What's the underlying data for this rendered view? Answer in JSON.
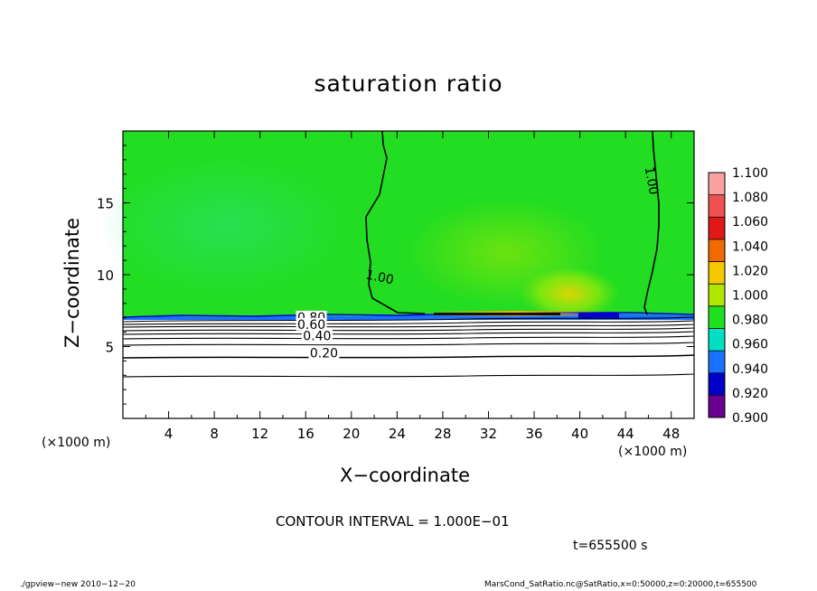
{
  "chart_data": {
    "type": "heatmap",
    "title": "saturation ratio",
    "xlabel": "X−coordinate",
    "ylabel": "Z−coordinate",
    "x_unit": "(×1000 m)",
    "x_range": [
      0,
      50
    ],
    "y_range": [
      0,
      20
    ],
    "x_ticks": [
      4,
      8,
      12,
      16,
      20,
      24,
      28,
      32,
      36,
      40,
      44,
      48
    ],
    "y_ticks": [
      5,
      10,
      15
    ],
    "x_tick_labels": [
      "4",
      "8",
      "12",
      "16",
      "20",
      "24",
      "28",
      "32",
      "36",
      "40",
      "44",
      "48"
    ],
    "y_tick_labels": [
      "5",
      "10",
      "15"
    ],
    "colorbar": {
      "min": 0.9,
      "max": 1.1,
      "labels": [
        "1.100",
        "1.080",
        "1.060",
        "1.040",
        "1.020",
        "1.000",
        "0.980",
        "0.960",
        "0.940",
        "0.920",
        "0.900"
      ],
      "colors": [
        "#f9a0a0",
        "#ef5050",
        "#e01818",
        "#f06a00",
        "#f5c800",
        "#b0e600",
        "#1ee01e",
        "#00e0c0",
        "#1a70ff",
        "#0000c8",
        "#6a0090"
      ]
    },
    "contour_labels": [
      {
        "text": "1.00",
        "x": 22.5,
        "z": 9.6
      },
      {
        "text": "1.00",
        "x": 46.3,
        "z": 16.3
      },
      {
        "text": "0.80",
        "x": 16.5,
        "z": 6.8
      },
      {
        "text": "0.60",
        "x": 16.5,
        "z": 6.3
      },
      {
        "text": "0.40",
        "x": 17.0,
        "z": 5.5
      },
      {
        "text": "0.20",
        "x": 17.6,
        "z": 4.3
      }
    ],
    "contour_interval": "CONTOUR INTERVAL = 1.000E−01",
    "time": "t=655500 s"
  },
  "footer": {
    "left": "./gpview−new   2010−12−20",
    "right": "MarsCond_SatRatio.nc@SatRatio,x=0:50000,z=0:20000,t=655500"
  }
}
